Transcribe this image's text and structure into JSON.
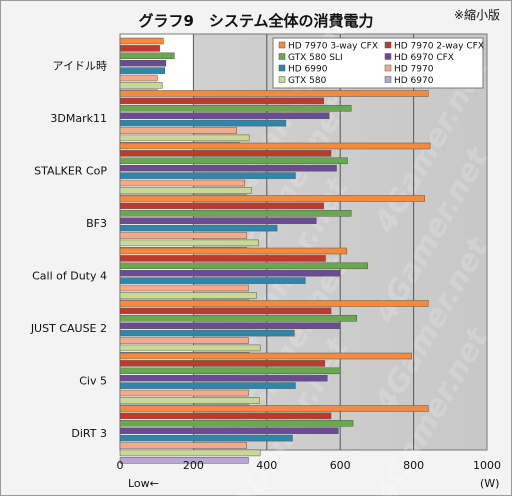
{
  "header": {
    "title": "グラフ9　システム全体の消費電力",
    "note": "※縮小版"
  },
  "footer": {
    "low_label": "Low←",
    "unit_label": "(W)"
  },
  "chart_data": {
    "type": "bar",
    "orientation": "horizontal",
    "title": "グラフ9　システム全体の消費電力",
    "xlabel": "(W)",
    "xlim": [
      0,
      1000
    ],
    "xticks": [
      0,
      200,
      400,
      600,
      800,
      1000
    ],
    "grid": true,
    "legend_position": "top-right",
    "categories": [
      "アイドル時",
      "3DMark11",
      "STALKER CoP",
      "BF3",
      "Call of Duty 4",
      "JUST CAUSE 2",
      "Civ 5",
      "DiRT 3"
    ],
    "series": [
      {
        "name": "HD 7970 3-way CFX",
        "color": "#f58a3c",
        "values": [
          118,
          840,
          845,
          830,
          618,
          840,
          795,
          840
        ]
      },
      {
        "name": "HD 7970 2-way CFX",
        "color": "#c0392b",
        "values": [
          108,
          555,
          575,
          555,
          560,
          575,
          558,
          575
        ]
      },
      {
        "name": "GTX 580 SLI",
        "color": "#6aa84f",
        "values": [
          148,
          630,
          620,
          630,
          675,
          645,
          600,
          635
        ]
      },
      {
        "name": "HD 6970 CFX",
        "color": "#6a4c93",
        "values": [
          125,
          570,
          590,
          535,
          600,
          600,
          565,
          595
        ]
      },
      {
        "name": "HD 6990",
        "color": "#2e86ab",
        "values": [
          122,
          452,
          478,
          428,
          505,
          475,
          478,
          470
        ]
      },
      {
        "name": "HD 7970",
        "color": "#f4a98a",
        "values": [
          102,
          318,
          340,
          345,
          350,
          350,
          350,
          345
        ]
      },
      {
        "name": "GTX 580",
        "color": "#c8d896",
        "values": [
          115,
          352,
          358,
          378,
          372,
          382,
          380,
          382
        ]
      },
      {
        "name": "HD 6970",
        "color": "#b9a5d8",
        "values": [
          102,
          325,
          345,
          345,
          352,
          352,
          352,
          350
        ]
      }
    ]
  },
  "watermark": "4Gamer.net"
}
